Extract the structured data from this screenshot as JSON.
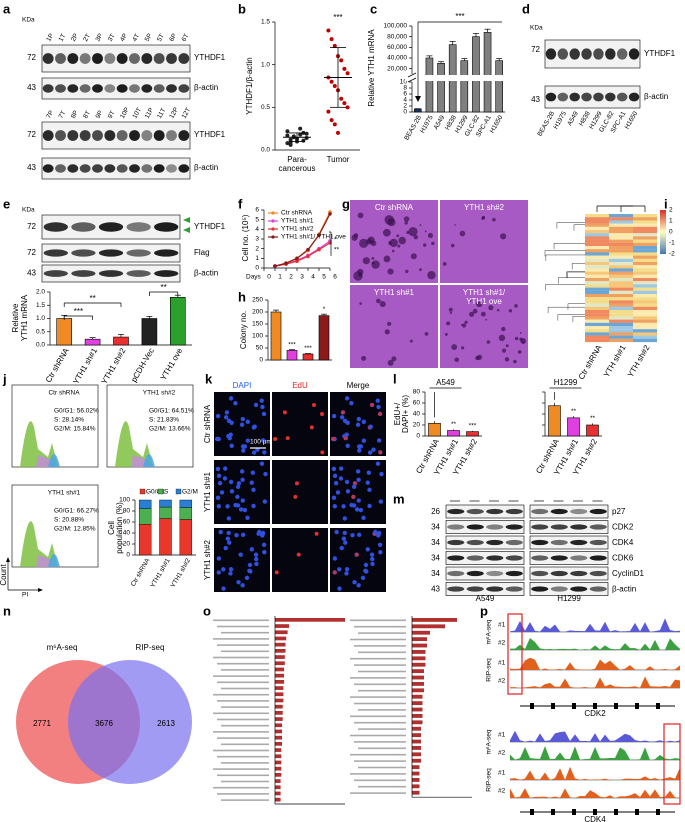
{
  "a": {
    "label": "a",
    "kda": "KDa",
    "blots": [
      {
        "lanes": [
          "1P",
          "1T",
          "2P",
          "2T",
          "3P",
          "3T",
          "4P",
          "4T",
          "5P",
          "5T",
          "6P",
          "6T"
        ],
        "markers": [
          "72",
          "43"
        ],
        "bands": [
          "YTHDF1",
          "β-actin"
        ]
      },
      {
        "lanes": [
          "7P",
          "7T",
          "8P",
          "8T",
          "9P",
          "9T",
          "10P",
          "10T",
          "11P",
          "11T",
          "12P",
          "12T"
        ],
        "markers": [
          "72",
          "43"
        ],
        "bands": [
          "YTHDF1",
          "β-actin"
        ]
      }
    ]
  },
  "b": {
    "label": "b",
    "type": "scatter",
    "ylabel": "YTHDF1/β-actin",
    "annotation": "***",
    "categories": [
      [
        "Para-",
        "cancerous"
      ],
      [
        "Tumor"
      ]
    ],
    "ylim": [
      0,
      1.5
    ],
    "yticks": [
      {
        "value": 0,
        "label": "0.0"
      },
      0.5,
      {
        "value": 1,
        "label": "1.0"
      },
      1.5
    ],
    "series": [
      {
        "color": "#222222",
        "values": [
          0.08,
          0.12,
          0.15,
          0.1,
          0.18,
          0.2,
          0.14,
          0.22,
          0.09,
          0.16,
          0.13,
          0.25,
          0.11,
          0.19,
          0.17,
          0.06
        ],
        "mean": 0.15,
        "sd": 0.05
      },
      {
        "color": "#c00000",
        "values": [
          1.4,
          1.3,
          1.22,
          1.1,
          1.05,
          0.95,
          0.9,
          0.85,
          0.8,
          0.75,
          0.7,
          0.6,
          0.55,
          0.5,
          0.45,
          0.35,
          0.3,
          0.2
        ],
        "mean": 0.85,
        "sd": 0.35
      }
    ]
  },
  "c": {
    "label": "c",
    "type": "bar",
    "ylabel": "Relative YTH1 mRNA",
    "annotation": "***",
    "categories": [
      "BEAS-2B",
      "H1975",
      "A549",
      "H838",
      "H1299",
      "GLC-82",
      "SPC-A1",
      "H1650"
    ],
    "values": [
      1,
      40000,
      30000,
      65000,
      35000,
      80000,
      88000,
      35000
    ],
    "errors": [
      0.1,
      4000,
      3000,
      6000,
      4000,
      6000,
      6000,
      4000
    ],
    "colors": [
      "#1f3864",
      "#808080",
      "#808080",
      "#808080",
      "#808080",
      "#808080",
      "#808080",
      "#808080"
    ],
    "ylim_lower": [
      0,
      10
    ],
    "yticks_lower": [
      0,
      2,
      4,
      6,
      8,
      10
    ],
    "ylim_upper": [
      10000,
      100000
    ],
    "yticks_upper": [
      {
        "value": 20000,
        "label": "20,000"
      },
      {
        "value": 40000,
        "label": "40,000"
      },
      {
        "value": 60000,
        "label": "60,000"
      },
      {
        "value": 80000,
        "label": "80,000"
      },
      {
        "value": 100000,
        "label": "100,000"
      }
    ]
  },
  "d": {
    "label": "d",
    "kda": "KDa",
    "markers": [
      "72",
      "43"
    ],
    "bands": [
      "YTHDF1",
      "β-actin"
    ],
    "lanes": [
      "BEAS-2B",
      "H1975",
      "A549",
      "H838",
      "H1299",
      "GLC-82",
      "SPC-A1",
      "H1650"
    ]
  },
  "e": {
    "label": "e",
    "kda": "KDa",
    "markers": [
      "72",
      "72",
      "43"
    ],
    "bands": [
      "YTHDF1",
      "Flag",
      "β-actin"
    ],
    "chart": {
      "type": "bar",
      "ylabel": [
        "Relative",
        "YTH1 mRNA"
      ],
      "categories": [
        "Ctr shRNA",
        "YTH1 sh#1",
        "YTH1 sh#2",
        "pCDH-Vec",
        "YTH1 ove"
      ],
      "values": [
        1.0,
        0.22,
        0.3,
        1.0,
        1.8
      ],
      "errors": [
        0.12,
        0.06,
        0.1,
        0.08,
        0.08
      ],
      "colors": [
        "#f08a24",
        "#e040e0",
        "#e83030",
        "#222222",
        "#2ca02c"
      ],
      "ylim": [
        0,
        2
      ],
      "yticks": [
        {
          "value": 0,
          "label": "0.0"
        },
        0.5,
        {
          "value": 1,
          "label": "1.0"
        },
        1.5,
        {
          "value": 2,
          "label": "2.0"
        }
      ],
      "annotations": [
        "***",
        "**",
        "**"
      ]
    }
  },
  "f": {
    "label": "f",
    "type": "line",
    "ylabel": "Cell no. (10⁵)",
    "xlabel": "Days",
    "x": [
      1,
      2,
      3,
      4,
      5,
      6
    ],
    "xlim": [
      0,
      6
    ],
    "xticks": [
      0,
      1,
      2,
      3,
      4,
      5,
      6
    ],
    "ylim": [
      0,
      6
    ],
    "yticks": [
      0,
      1,
      2,
      3,
      4,
      5,
      6
    ],
    "series": [
      {
        "name": "Ctr shRNA",
        "color": "#f08a24",
        "values": [
          0.2,
          0.5,
          1.0,
          1.8,
          3.5,
          5.8
        ]
      },
      {
        "name": "YTH1 sh#1",
        "color": "#e040e0",
        "values": [
          0.2,
          0.4,
          0.8,
          1.3,
          2.0,
          2.8
        ]
      },
      {
        "name": "YTH1 sh#2",
        "color": "#e83030",
        "values": [
          0.2,
          0.4,
          0.7,
          1.2,
          1.9,
          2.6
        ]
      },
      {
        "name": "YTH1 sh#1/ YTH1 ove",
        "color": "#8b1a1a",
        "values": [
          0.2,
          0.5,
          1.0,
          1.9,
          3.4,
          5.6
        ]
      }
    ],
    "annotations": [
      "*",
      "**"
    ]
  },
  "g": {
    "label": "g",
    "panels": [
      [
        "Ctr shRNA"
      ],
      [
        "YTH1 sh#2"
      ],
      [
        "YTH1 sh#1"
      ],
      [
        "YTH1 sh#1/",
        "YTH1 ove"
      ]
    ]
  },
  "h": {
    "label": "h",
    "type": "bar",
    "ylabel": "Colony no.",
    "values": [
      200,
      40,
      25,
      185
    ],
    "errors": [
      8,
      3,
      2,
      6
    ],
    "colors": [
      "#f08a24",
      "#e040e0",
      "#e83030",
      "#8b1a1a"
    ],
    "ylim": [
      0,
      250
    ],
    "yticks": [
      0,
      50,
      100,
      150,
      200,
      250
    ],
    "annotations": [
      null,
      "***",
      "***",
      "*"
    ]
  },
  "i": {
    "label": "i",
    "colorbar_ticks": [
      2,
      1,
      0,
      -1,
      -2
    ],
    "columns": [
      "Ctr shRNA",
      "YTH sh#1",
      "YTH sh#2"
    ]
  },
  "j": {
    "label": "j",
    "ylabel": "Count",
    "xlabel": "PI",
    "histograms": [
      {
        "title": "Ctr shRNA",
        "stats": [
          "G0/G1: 56.02%",
          "S: 28.14%",
          "G2/M: 15.84%"
        ]
      },
      {
        "title": "YTH1 sh#2",
        "stats": [
          "G0/G1: 64.51%",
          "S: 21.83%",
          "G2/M: 13.66%"
        ]
      },
      {
        "title": "YTH1 sh#1",
        "stats": [
          "G0/G1: 66.27%",
          "S: 20.88%",
          "G2/M: 12.85%"
        ]
      }
    ],
    "chart": {
      "type": "stacked-bar",
      "ylabel": [
        "Cell",
        "population (%)"
      ],
      "categories": [
        "Ctr shRNA",
        "YTH1 sh#1",
        "YTH1 sh#2"
      ],
      "ylim": [
        0,
        100
      ],
      "yticks": [
        0,
        20,
        40,
        60,
        80,
        100
      ],
      "series": [
        {
          "name": "G0/G1",
          "color": "#e8382b",
          "values": [
            56.02,
            66.27,
            64.51
          ]
        },
        {
          "name": "S",
          "color": "#4caf50",
          "values": [
            28.14,
            20.88,
            21.83
          ]
        },
        {
          "name": "G2/M",
          "color": "#2a7fd4",
          "values": [
            15.84,
            12.85,
            13.66
          ]
        }
      ]
    }
  },
  "k": {
    "label": "k",
    "columns": [
      "DAPI",
      "EdU",
      "Merge"
    ],
    "rows": [
      "Ctr shRNA",
      "YTH1 sh#1",
      "YTH1 sh#2"
    ],
    "scale_bar": "100 μm"
  },
  "l": {
    "label": "l",
    "type": "bar",
    "ylabel": [
      "EdU+/",
      "DAPI+ (%)"
    ],
    "ylim": [
      0,
      80
    ],
    "yticks": [
      0,
      20,
      40,
      60,
      80
    ],
    "colors": [
      "#f08a24",
      "#e040e0",
      "#e83030"
    ],
    "groups": [
      {
        "title": "A549",
        "categories": [
          "Ctr shRNA",
          "YTH1 sh#1",
          "YTH1 sh#2"
        ],
        "values": [
          23,
          10,
          8
        ],
        "errors": [
          4,
          2,
          1.5
        ],
        "annotations": [
          null,
          "**",
          "***"
        ]
      },
      {
        "title": "H1299",
        "categories": [
          "Ctr shRNA",
          "YTH1 sh#1",
          "YTH1 sh#2"
        ],
        "values": [
          55,
          33,
          20
        ],
        "errors": [
          5,
          3,
          3
        ],
        "annotations": [
          null,
          "**",
          "**"
        ]
      }
    ]
  },
  "m": {
    "label": "m",
    "markers": [
      "26",
      "34",
      "34",
      "34",
      "34",
      "43"
    ],
    "bands": [
      "p27",
      "CDK2",
      "CDK4",
      "CDK6",
      "CyclinD1",
      "β-actin"
    ],
    "cell_lines": [
      "A549",
      "H1299"
    ]
  },
  "n": {
    "label": "n",
    "sets": [
      "m⁶A-seq",
      "RIP-seq"
    ],
    "counts": [
      2771,
      3676,
      2613
    ]
  },
  "o": {
    "label": "o",
    "charts": [
      {
        "type": "bar",
        "xlim": [
          0,
          10
        ],
        "values": [
          10,
          2,
          1.8,
          1.6,
          1.5,
          1.5,
          1.4,
          1.4,
          1.3,
          1.3,
          1.3,
          1.2,
          1.2,
          1.2,
          1.1,
          1.1,
          1.1,
          1.0,
          1.0,
          1.0,
          1.0,
          0.9,
          0.9,
          0.9,
          0.9,
          0.9,
          0.8,
          0.8,
          0.8,
          0.8
        ]
      },
      {
        "type": "bar",
        "xlim": [
          0,
          4
        ],
        "values": [
          3,
          2.2,
          1.2,
          1.0,
          1.0,
          0.9,
          0.9,
          0.9,
          0.8,
          0.8,
          0.8,
          0.8,
          0.7,
          0.7,
          0.7,
          0.7,
          0.7,
          0.6,
          0.6,
          0.6,
          0.6,
          0.6,
          0.6,
          0.5,
          0.5,
          0.5,
          0.5,
          0.5
        ]
      }
    ]
  },
  "p": {
    "label": "p",
    "genes": [
      {
        "name": "CDK2",
        "tracks": [
          {
            "assay": "m⁶A-seq",
            "replicates": [
              "#1",
              "#2"
            ]
          },
          {
            "assay": "RIP-seq",
            "replicates": [
              "#1",
              "#2"
            ]
          }
        ]
      },
      {
        "name": "CDK4",
        "tracks": [
          {
            "assay": "m⁶A-seq",
            "replicates": [
              "#1",
              "#2"
            ]
          },
          {
            "assay": "RIP-seq",
            "replicates": [
              "#1",
              "#2"
            ]
          }
        ]
      }
    ]
  }
}
